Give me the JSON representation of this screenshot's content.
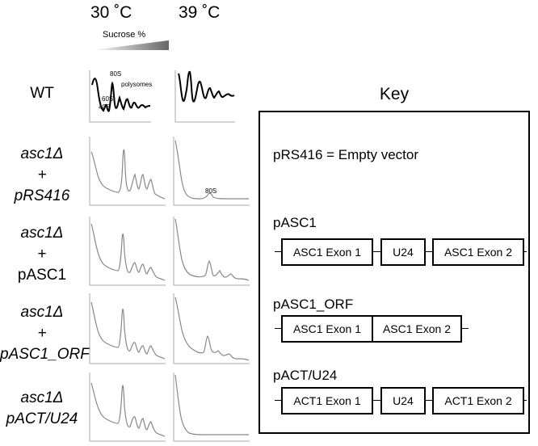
{
  "header": {
    "temp_left": "30 ˚C",
    "temp_right": "39 ˚C",
    "sucrose": "Sucrose %"
  },
  "rows": [
    {
      "lines": [
        "WT"
      ]
    },
    {
      "lines": [
        "asc1Δ",
        "+",
        "pRS416"
      ]
    },
    {
      "lines": [
        "asc1Δ",
        "+",
        "pASC1"
      ]
    },
    {
      "lines": [
        "asc1Δ",
        "+",
        "pASC1_ORF"
      ]
    },
    {
      "lines": [
        "asc1Δ",
        "pACT/U24"
      ]
    }
  ],
  "annotations": {
    "s80": "80S",
    "s60": "60S",
    "s40": "40S",
    "polysomes": "polysomes",
    "s80b": "80S"
  },
  "key": {
    "title": "Key",
    "empty_vector": "pRS416 = Empty vector",
    "constructs": [
      {
        "name": "pASC1",
        "segments": [
          "ASC1 Exon 1",
          "U24",
          "ASC1 Exon 2"
        ]
      },
      {
        "name": "pASC1_ORF",
        "segments": [
          "ASC1 Exon 1",
          "ASC1 Exon 2"
        ]
      },
      {
        "name": "pACT/U24",
        "segments": [
          "ACT1 Exon 1",
          "U24",
          "ACT1 Exon 2"
        ]
      }
    ]
  },
  "colors": {
    "wt_trace": "#000000",
    "mutant_trace": "#888888",
    "axis": "#aaaaaa"
  }
}
